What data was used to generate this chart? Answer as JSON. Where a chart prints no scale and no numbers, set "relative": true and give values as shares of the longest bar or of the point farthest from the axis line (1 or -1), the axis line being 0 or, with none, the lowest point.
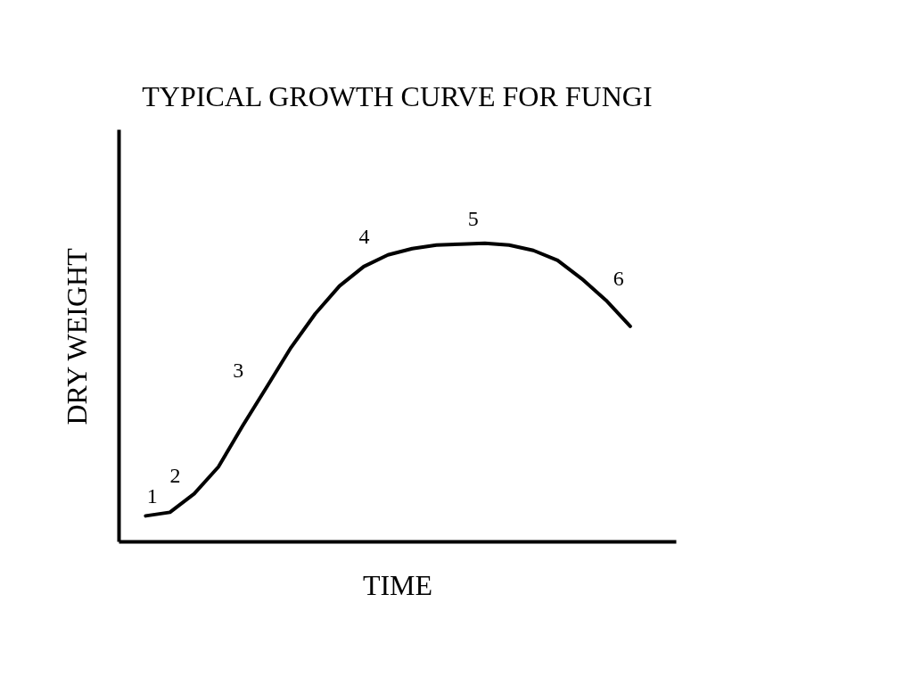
{
  "chart_data": {
    "type": "line",
    "title": "TYPICAL GROWTH CURVE FOR FUNGI",
    "xlabel": "TIME",
    "ylabel": "DRY WEIGHT",
    "relative": true,
    "marker": "none",
    "line_style": "solid",
    "categories": [
      null,
      null,
      null,
      null,
      null,
      null,
      null,
      null,
      null,
      null,
      null,
      null,
      null,
      null,
      null,
      null,
      null,
      null,
      null,
      null,
      null
    ],
    "series": [
      {
        "color": "#000000",
        "values": [
          0.087,
          0.099,
          0.161,
          0.251,
          0.388,
          0.519,
          0.651,
          0.764,
          0.857,
          0.922,
          0.961,
          0.982,
          0.994,
          0.997,
          1,
          0.994,
          0.976,
          0.943,
          0.881,
          0.809,
          0.722
        ]
      }
    ],
    "annotations": [
      "1",
      "2",
      "3",
      "4",
      "5",
      "6"
    ]
  }
}
